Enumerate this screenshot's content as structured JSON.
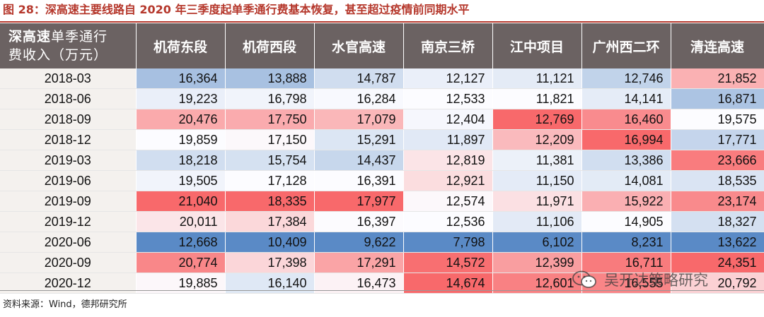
{
  "title": "图 28：深高速主要线路自 2020 年三季度起单季通行费基本恢复，甚至超过疫情前同期水平",
  "table": {
    "corner_line1_em": "深高速",
    "corner_line1_rest": "单季通行",
    "corner_line2": "费收入（万元）",
    "columns": [
      "机荷东段",
      "机荷西段",
      "水官高速",
      "南京三桥",
      "江中项目",
      "广州西二环",
      "清连高速"
    ],
    "rows": [
      {
        "period": "2018-03",
        "values": [
          "16,364",
          "13,888",
          "14,787",
          "12,127",
          "11,121",
          "12,746",
          "21,852"
        ]
      },
      {
        "period": "2018-06",
        "values": [
          "19,223",
          "16,798",
          "16,284",
          "12,533",
          "11,821",
          "14,141",
          "16,871"
        ]
      },
      {
        "period": "2018-09",
        "values": [
          "20,476",
          "17,750",
          "17,079",
          "12,404",
          "12,769",
          "16,460",
          "19,575"
        ]
      },
      {
        "period": "2018-12",
        "values": [
          "19,859",
          "17,150",
          "15,291",
          "11,897",
          "12,209",
          "16,994",
          "17,771"
        ]
      },
      {
        "period": "2019-03",
        "values": [
          "18,218",
          "15,754",
          "14,437",
          "12,819",
          "11,381",
          "13,386",
          "23,666"
        ]
      },
      {
        "period": "2019-06",
        "values": [
          "19,505",
          "17,128",
          "16,391",
          "12,921",
          "11,150",
          "14,081",
          "18,535"
        ]
      },
      {
        "period": "2019-09",
        "values": [
          "21,040",
          "18,335",
          "17,977",
          "12,574",
          "11,971",
          "15,922",
          "23,174"
        ]
      },
      {
        "period": "2019-12",
        "values": [
          "20,011",
          "17,384",
          "16,397",
          "12,536",
          "11,106",
          "14,905",
          "18,327"
        ]
      },
      {
        "period": "2020-06",
        "values": [
          "12,668",
          "10,409",
          "9,622",
          "7,798",
          "6,102",
          "8,231",
          "13,622"
        ]
      },
      {
        "period": "2020-09",
        "values": [
          "20,774",
          "17,398",
          "17,291",
          "14,572",
          "12,399",
          "16,711",
          "24,351"
        ]
      },
      {
        "period": "2020-12",
        "values": [
          "19,885",
          "16,140",
          "16,473",
          "14,674",
          "12,601",
          "16,555",
          "20,792"
        ]
      }
    ]
  },
  "source": "资料来源：Wind，德邦研究所",
  "watermark": "吴开达策略研究",
  "colors": {
    "title": "#b5372b",
    "header_bg": "#6b6262",
    "high": "#f8696b",
    "mid": "#fcfcff",
    "low": "#5a8ac6"
  }
}
